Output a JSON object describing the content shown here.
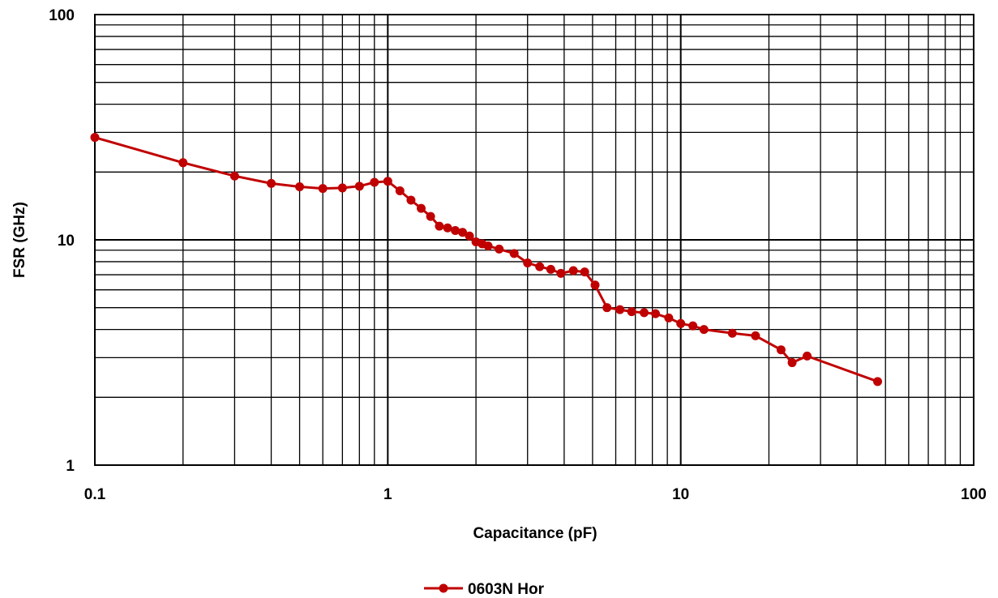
{
  "chart_data": {
    "type": "line",
    "title": "",
    "xlabel": "Capacitance (pF)",
    "ylabel": "FSR (GHz)",
    "x_scale": "log",
    "y_scale": "log",
    "xlim": [
      0.1,
      100
    ],
    "ylim": [
      1,
      100
    ],
    "x_ticks": [
      "0.1",
      "1",
      "10",
      "100"
    ],
    "y_ticks": [
      "1",
      "10",
      "100"
    ],
    "grid": true,
    "legend_position": "bottom",
    "colors": {
      "series": "#c00000",
      "grid": "#000000"
    },
    "series": [
      {
        "name": "0603N Hor",
        "x": [
          0.1,
          0.2,
          0.3,
          0.4,
          0.5,
          0.6,
          0.7,
          0.8,
          0.9,
          1.0,
          1.1,
          1.2,
          1.3,
          1.4,
          1.5,
          1.6,
          1.7,
          1.8,
          1.9,
          2.0,
          2.1,
          2.2,
          2.4,
          2.7,
          3.0,
          3.3,
          3.6,
          3.9,
          4.3,
          4.7,
          5.1,
          5.6,
          6.2,
          6.8,
          7.5,
          8.2,
          9.1,
          10,
          11,
          12,
          15,
          18,
          22,
          24,
          27,
          47
        ],
        "y": [
          28.5,
          22,
          19.2,
          17.8,
          17.2,
          16.9,
          17.0,
          17.3,
          18.0,
          18.2,
          16.5,
          15.0,
          13.8,
          12.7,
          11.5,
          11.3,
          11.0,
          10.8,
          10.4,
          9.8,
          9.6,
          9.4,
          9.1,
          8.7,
          7.9,
          7.6,
          7.4,
          7.1,
          7.3,
          7.2,
          6.3,
          5.0,
          4.9,
          4.8,
          4.75,
          4.7,
          4.5,
          4.25,
          4.15,
          4.0,
          3.85,
          3.75,
          3.25,
          2.85,
          3.05,
          2.35
        ]
      }
    ]
  }
}
